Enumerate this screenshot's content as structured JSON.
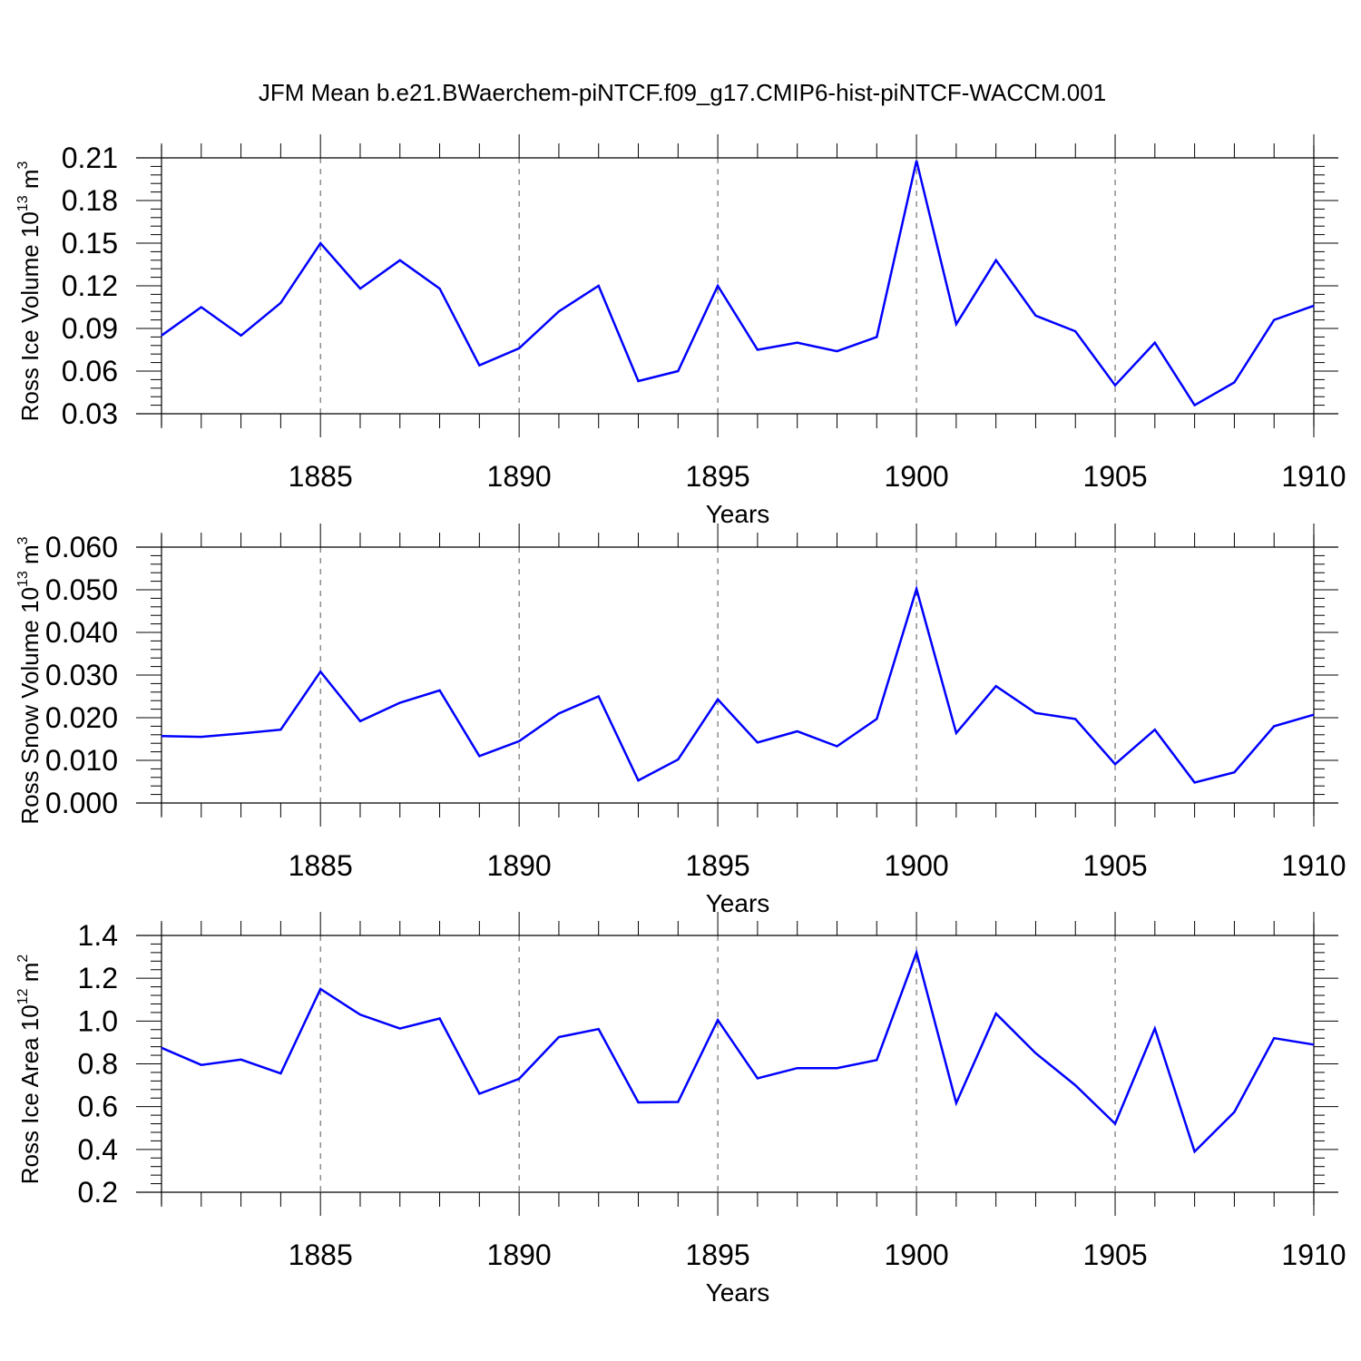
{
  "title": "JFM Mean b.e21.BWaerchem-piNTCF.f09_g17.CMIP6-hist-piNTCF-WACCM.001",
  "style": {
    "line_color": "#0000ff",
    "axis_color": "#000000",
    "grid_color": "#555555"
  },
  "chart_data": [
    {
      "type": "line",
      "ylabel": {
        "text": "Ross Ice Volume 10",
        "exp": "13",
        "unit": " m",
        "unit_exp": "3"
      },
      "xlabel": "Years",
      "xlim": [
        1881,
        1910
      ],
      "ylim": [
        0.03,
        0.21
      ],
      "yticks": [
        "0.03",
        "0.06",
        "0.09",
        "0.12",
        "0.15",
        "0.18",
        "0.21"
      ],
      "xticks": [
        "1885",
        "1890",
        "1895",
        "1900",
        "1905",
        "1910"
      ],
      "grid": "vertical dashed at major x ticks",
      "series": [
        {
          "x": [
            1881,
            1882,
            1883,
            1884,
            1885,
            1886,
            1887,
            1888,
            1889,
            1890,
            1891,
            1892,
            1893,
            1894,
            1895,
            1896,
            1897,
            1898,
            1899,
            1900,
            1901,
            1902,
            1903,
            1904,
            1905,
            1906,
            1907,
            1908,
            1909,
            1910
          ],
          "values": [
            0.085,
            0.105,
            0.085,
            0.108,
            0.15,
            0.118,
            0.138,
            0.118,
            0.064,
            0.076,
            0.102,
            0.12,
            0.053,
            0.06,
            0.12,
            0.075,
            0.08,
            0.074,
            0.084,
            0.208,
            0.093,
            0.138,
            0.099,
            0.088,
            0.05,
            0.08,
            0.036,
            0.052,
            0.096,
            0.106
          ]
        }
      ]
    },
    {
      "type": "line",
      "ylabel": {
        "text": "Ross Snow Volume 10",
        "exp": "13",
        "unit": " m",
        "unit_exp": "3"
      },
      "xlabel": "Years",
      "xlim": [
        1881,
        1910
      ],
      "ylim": [
        0.0,
        0.06
      ],
      "yticks": [
        "0.000",
        "0.010",
        "0.020",
        "0.030",
        "0.040",
        "0.050",
        "0.060"
      ],
      "xticks": [
        "1885",
        "1890",
        "1895",
        "1900",
        "1905",
        "1910"
      ],
      "grid": "vertical dashed at major x ticks",
      "series": [
        {
          "x": [
            1881,
            1882,
            1883,
            1884,
            1885,
            1886,
            1887,
            1888,
            1889,
            1890,
            1891,
            1892,
            1893,
            1894,
            1895,
            1896,
            1897,
            1898,
            1899,
            1900,
            1901,
            1902,
            1903,
            1904,
            1905,
            1906,
            1907,
            1908,
            1909,
            1910
          ],
          "values": [
            0.0157,
            0.0155,
            0.0163,
            0.0172,
            0.0308,
            0.0192,
            0.0235,
            0.0264,
            0.011,
            0.0145,
            0.021,
            0.025,
            0.0053,
            0.0102,
            0.0243,
            0.0142,
            0.0168,
            0.0133,
            0.0197,
            0.0502,
            0.0164,
            0.0274,
            0.0211,
            0.0197,
            0.0091,
            0.0172,
            0.0048,
            0.0072,
            0.018,
            0.0207
          ]
        }
      ]
    },
    {
      "type": "line",
      "ylabel": {
        "text": "Ross Ice Area 10",
        "exp": "12",
        "unit": " m",
        "unit_exp": "2"
      },
      "xlabel": "Years",
      "xlim": [
        1881,
        1910
      ],
      "ylim": [
        0.2,
        1.4
      ],
      "yticks": [
        "0.2",
        "0.4",
        "0.6",
        "0.8",
        "1.0",
        "1.2",
        "1.4"
      ],
      "xticks": [
        "1885",
        "1890",
        "1895",
        "1900",
        "1905",
        "1910"
      ],
      "grid": "vertical dashed at major x ticks",
      "series": [
        {
          "x": [
            1881,
            1882,
            1883,
            1884,
            1885,
            1886,
            1887,
            1888,
            1889,
            1890,
            1891,
            1892,
            1893,
            1894,
            1895,
            1896,
            1897,
            1898,
            1899,
            1900,
            1901,
            1902,
            1903,
            1904,
            1905,
            1906,
            1907,
            1908,
            1909,
            1910
          ],
          "values": [
            0.875,
            0.795,
            0.82,
            0.755,
            1.15,
            1.03,
            0.965,
            1.012,
            0.66,
            0.73,
            0.925,
            0.963,
            0.62,
            0.622,
            1.005,
            0.732,
            0.78,
            0.78,
            0.818,
            1.32,
            0.617,
            1.035,
            0.85,
            0.7,
            0.52,
            0.965,
            0.39,
            0.575,
            0.92,
            0.89
          ]
        }
      ]
    }
  ]
}
